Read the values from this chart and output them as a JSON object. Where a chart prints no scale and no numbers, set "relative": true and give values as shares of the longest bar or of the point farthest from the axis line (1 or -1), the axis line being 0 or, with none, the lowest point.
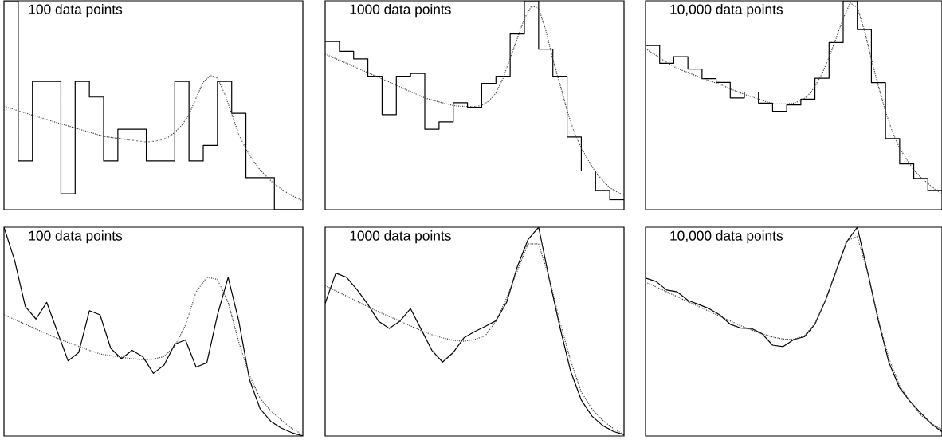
{
  "chart_data": [
    {
      "type": "line",
      "title": "100 data points",
      "relative": true,
      "categories": [
        null,
        null,
        null,
        null,
        null,
        null,
        null,
        null,
        null,
        null,
        null,
        null,
        null,
        null,
        null,
        null,
        null,
        null,
        null,
        null,
        null,
        null,
        null,
        null,
        null,
        null,
        null,
        null,
        null,
        null,
        null,
        null,
        null,
        null,
        null,
        null,
        null,
        null,
        null,
        null,
        null,
        null,
        null
      ],
      "series": [
        {
          "type": "step",
          "color": "#000000",
          "values": [
            1,
            1,
            0.233,
            0.233,
            0.614,
            0.614,
            0.614,
            0.614,
            0.076,
            0.076,
            0.614,
            0.614,
            0.539,
            0.539,
            0.233,
            0.233,
            0.385,
            0.385,
            0.385,
            0.385,
            0.233,
            0.233,
            0.233,
            0.233,
            0.614,
            0.614,
            0.233,
            0.233,
            0.308,
            0.308,
            0.614,
            0.614,
            0.461,
            0.461,
            0.153,
            0.153,
            0.153,
            0.153,
            0,
            0,
            0,
            0,
            0
          ]
        },
        {
          "color": "#404040",
          "line_style": "dotted",
          "values": [
            0.494,
            0.484,
            0.473,
            0.463,
            0.452,
            0.442,
            0.432,
            0.421,
            0.411,
            0.401,
            0.391,
            0.381,
            0.371,
            0.361,
            0.351,
            0.346,
            0.341,
            0.337,
            0.332,
            0.328,
            0.324,
            0.327,
            0.333,
            0.345,
            0.37,
            0.405,
            0.455,
            0.535,
            0.61,
            0.643,
            0.63,
            0.555,
            0.46,
            0.36,
            0.29,
            0.235,
            0.19,
            0.155,
            0.122,
            0.098,
            0.076,
            0.058,
            0.042
          ]
        }
      ]
    },
    {
      "type": "line",
      "title": "1000 data points",
      "relative": true,
      "categories": [
        null,
        null,
        null,
        null,
        null,
        null,
        null,
        null,
        null,
        null,
        null,
        null,
        null,
        null,
        null,
        null,
        null,
        null,
        null,
        null,
        null,
        null,
        null,
        null,
        null,
        null,
        null,
        null,
        null,
        null,
        null,
        null,
        null,
        null,
        null,
        null,
        null,
        null,
        null,
        null,
        null,
        null,
        null
      ],
      "series": [
        {
          "type": "step",
          "color": "#000000",
          "values": [
            0.805,
            0.805,
            0.758,
            0.758,
            0.722,
            0.722,
            0.639,
            0.639,
            0.455,
            0.455,
            0.639,
            0.639,
            0.652,
            0.652,
            0.385,
            0.385,
            0.42,
            0.42,
            0.512,
            0.512,
            0.49,
            0.49,
            0.605,
            0.605,
            0.639,
            0.639,
            0.841,
            0.841,
            1,
            1,
            0.768,
            0.768,
            0.639,
            0.639,
            0.348,
            0.348,
            0.185,
            0.185,
            0.092,
            0.092,
            0.047,
            0.047,
            0.047
          ]
        },
        {
          "color": "#404040",
          "line_style": "dotted",
          "values": [
            0.745,
            0.73,
            0.715,
            0.701,
            0.686,
            0.671,
            0.656,
            0.641,
            0.626,
            0.611,
            0.596,
            0.58,
            0.565,
            0.55,
            0.535,
            0.525,
            0.516,
            0.507,
            0.498,
            0.495,
            0.494,
            0.494,
            0.498,
            0.52,
            0.558,
            0.63,
            0.725,
            0.82,
            0.915,
            0.975,
            0.965,
            0.86,
            0.72,
            0.6,
            0.475,
            0.37,
            0.295,
            0.235,
            0.18,
            0.14,
            0.105,
            0.085,
            0.07
          ]
        }
      ]
    },
    {
      "type": "line",
      "title": "10,000 data points",
      "relative": true,
      "categories": [
        null,
        null,
        null,
        null,
        null,
        null,
        null,
        null,
        null,
        null,
        null,
        null,
        null,
        null,
        null,
        null,
        null,
        null,
        null,
        null,
        null,
        null,
        null,
        null,
        null,
        null,
        null,
        null,
        null,
        null,
        null,
        null,
        null,
        null,
        null,
        null,
        null,
        null,
        null,
        null,
        null,
        null,
        null
      ],
      "series": [
        {
          "type": "step",
          "color": "#000000",
          "values": [
            0.786,
            0.786,
            0.701,
            0.701,
            0.732,
            0.732,
            0.673,
            0.673,
            0.627,
            0.627,
            0.609,
            0.609,
            0.535,
            0.535,
            0.563,
            0.563,
            0.51,
            0.51,
            0.471,
            0.471,
            0.501,
            0.501,
            0.529,
            0.529,
            0.629,
            0.629,
            0.8,
            0.8,
            1,
            1,
            0.862,
            0.862,
            0.608,
            0.608,
            0.34,
            0.34,
            0.219,
            0.219,
            0.149,
            0.149,
            0.092,
            0.092,
            0.092
          ]
        },
        {
          "color": "#404040",
          "line_style": "dotted",
          "values": [
            0.771,
            0.749,
            0.727,
            0.705,
            0.685,
            0.669,
            0.657,
            0.643,
            0.63,
            0.618,
            0.606,
            0.594,
            0.578,
            0.565,
            0.552,
            0.541,
            0.53,
            0.518,
            0.507,
            0.506,
            0.506,
            0.51,
            0.522,
            0.545,
            0.59,
            0.65,
            0.73,
            0.82,
            0.915,
            0.99,
            0.968,
            0.86,
            0.72,
            0.59,
            0.47,
            0.37,
            0.295,
            0.24,
            0.19,
            0.155,
            0.125,
            0.098,
            0.076
          ]
        }
      ]
    },
    {
      "type": "line",
      "title": "100 data points",
      "relative": true,
      "categories": [
        null,
        null,
        null,
        null,
        null,
        null,
        null,
        null,
        null,
        null,
        null,
        null,
        null,
        null,
        null,
        null,
        null,
        null,
        null,
        null,
        null,
        null,
        null,
        null,
        null,
        null,
        null,
        null,
        null
      ],
      "series": [
        {
          "color": "#000000",
          "values": [
            1,
            0.84,
            0.62,
            0.56,
            0.64,
            0.5,
            0.36,
            0.4,
            0.6,
            0.58,
            0.42,
            0.37,
            0.41,
            0.38,
            0.3,
            0.34,
            0.44,
            0.46,
            0.33,
            0.35,
            0.58,
            0.76,
            0.55,
            0.27,
            0.13,
            0.07,
            0.037,
            0.015,
            0
          ]
        },
        {
          "color": "#404040",
          "line_style": "dotted",
          "values": [
            0.581,
            0.558,
            0.535,
            0.512,
            0.49,
            0.468,
            0.448,
            0.429,
            0.41,
            0.393,
            0.385,
            0.377,
            0.37,
            0.366,
            0.368,
            0.381,
            0.43,
            0.53,
            0.69,
            0.76,
            0.75,
            0.64,
            0.45,
            0.29,
            0.18,
            0.12,
            0.075,
            0.035,
            0.006
          ]
        }
      ]
    },
    {
      "type": "line",
      "title": "1000 data points",
      "relative": true,
      "categories": [
        null,
        null,
        null,
        null,
        null,
        null,
        null,
        null,
        null,
        null,
        null,
        null,
        null,
        null,
        null,
        null,
        null,
        null,
        null,
        null,
        null,
        null,
        null,
        null,
        null,
        null,
        null,
        null,
        null
      ],
      "series": [
        {
          "color": "#000000",
          "values": [
            0.635,
            0.78,
            0.76,
            0.7,
            0.63,
            0.55,
            0.515,
            0.55,
            0.61,
            0.51,
            0.41,
            0.354,
            0.4,
            0.47,
            0.5,
            0.525,
            0.552,
            0.64,
            0.81,
            0.94,
            1,
            0.75,
            0.52,
            0.31,
            0.172,
            0.095,
            0.05,
            0.022,
            0.006
          ]
        },
        {
          "color": "#404040",
          "line_style": "dotted",
          "values": [
            0.72,
            0.695,
            0.67,
            0.645,
            0.619,
            0.595,
            0.572,
            0.55,
            0.527,
            0.504,
            0.485,
            0.47,
            0.458,
            0.454,
            0.462,
            0.48,
            0.55,
            0.66,
            0.79,
            0.92,
            0.92,
            0.755,
            0.545,
            0.36,
            0.21,
            0.13,
            0.075,
            0.035,
            0.006
          ]
        }
      ]
    },
    {
      "type": "line",
      "title": "10,000 data points",
      "relative": true,
      "categories": [
        null,
        null,
        null,
        null,
        null,
        null,
        null,
        null,
        null,
        null,
        null,
        null,
        null,
        null,
        null,
        null,
        null,
        null,
        null,
        null,
        null,
        null,
        null,
        null,
        null,
        null,
        null,
        null,
        null
      ],
      "series": [
        {
          "color": "#000000",
          "values": [
            0.756,
            0.74,
            0.699,
            0.69,
            0.65,
            0.63,
            0.61,
            0.58,
            0.535,
            0.517,
            0.515,
            0.49,
            0.435,
            0.428,
            0.462,
            0.475,
            0.535,
            0.65,
            0.79,
            0.93,
            1,
            0.78,
            0.55,
            0.35,
            0.23,
            0.165,
            0.11,
            0.058,
            0.02
          ]
        },
        {
          "color": "#404040",
          "line_style": "dotted",
          "values": [
            0.737,
            0.714,
            0.69,
            0.667,
            0.643,
            0.62,
            0.597,
            0.574,
            0.551,
            0.528,
            0.508,
            0.49,
            0.474,
            0.464,
            0.462,
            0.48,
            0.538,
            0.65,
            0.79,
            0.935,
            0.955,
            0.78,
            0.56,
            0.37,
            0.24,
            0.165,
            0.1,
            0.06,
            0.03
          ]
        }
      ]
    }
  ]
}
